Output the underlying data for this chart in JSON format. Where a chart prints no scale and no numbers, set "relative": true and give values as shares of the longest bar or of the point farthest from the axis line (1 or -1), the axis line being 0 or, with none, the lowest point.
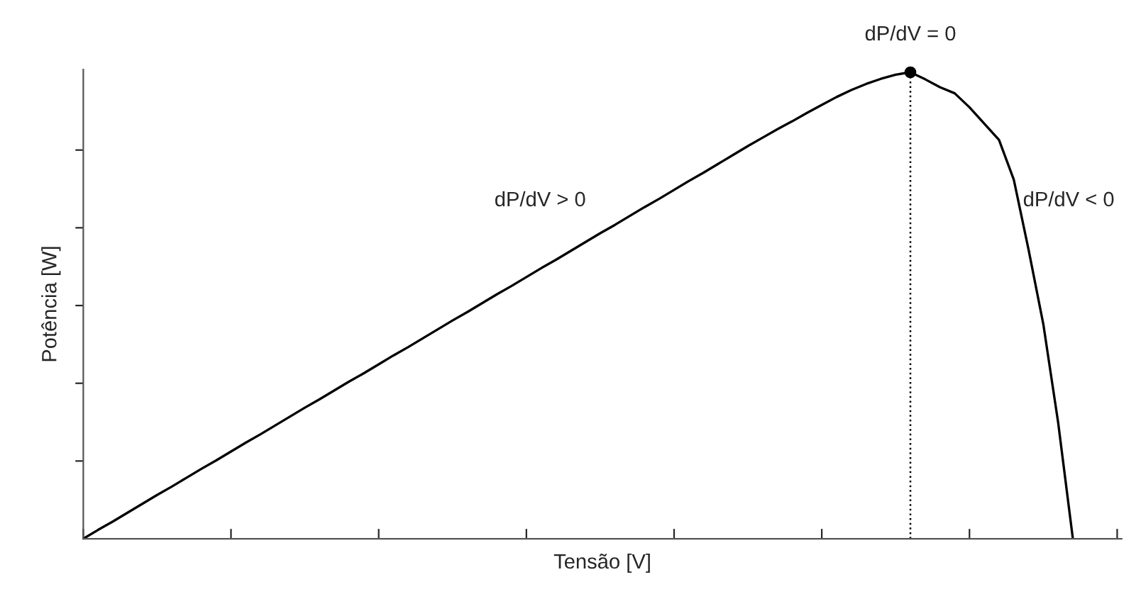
{
  "chart_data": {
    "type": "line",
    "relative": true,
    "xlabel": "Tensão [V]",
    "ylabel": "Potência [W]",
    "categories": [
      null,
      null,
      null,
      null,
      null,
      null,
      null,
      null,
      null,
      null,
      null,
      null,
      null,
      null,
      null,
      null,
      null,
      null,
      null,
      null,
      null,
      null,
      null,
      null,
      null,
      null,
      null,
      null,
      null,
      null,
      null,
      null,
      null,
      null,
      null,
      null,
      null,
      null,
      null,
      null,
      null,
      null,
      null,
      null,
      null,
      null,
      null,
      null,
      null,
      null,
      null,
      null,
      null,
      null,
      null,
      null,
      null,
      null,
      null,
      null,
      null,
      null,
      null,
      null,
      null,
      null,
      null,
      null
    ],
    "series": [
      {
        "color": "#000000",
        "values": [
          0,
          0.019,
          0.037,
          0.056,
          0.075,
          0.094,
          0.112,
          0.131,
          0.15,
          0.168,
          0.187,
          0.206,
          0.224,
          0.243,
          0.262,
          0.281,
          0.299,
          0.318,
          0.337,
          0.355,
          0.374,
          0.393,
          0.411,
          0.43,
          0.449,
          0.468,
          0.486,
          0.505,
          0.524,
          0.542,
          0.561,
          0.58,
          0.598,
          0.617,
          0.636,
          0.655,
          0.673,
          0.692,
          0.711,
          0.729,
          0.748,
          0.767,
          0.785,
          0.804,
          0.823,
          0.842,
          0.86,
          0.878,
          0.895,
          0.913,
          0.93,
          0.947,
          0.962,
          0.975,
          0.986,
          0.995,
          1.0,
          0.985,
          0.968,
          0.955,
          0.925,
          0.89,
          0.855,
          0.77,
          0.62,
          0.46,
          0.25,
          0
        ]
      }
    ],
    "annotations": [
      "dP/dV = 0",
      "dP/dV > 0",
      "dP/dV < 0"
    ],
    "grid": false,
    "legend": false,
    "line_style": "solid"
  }
}
